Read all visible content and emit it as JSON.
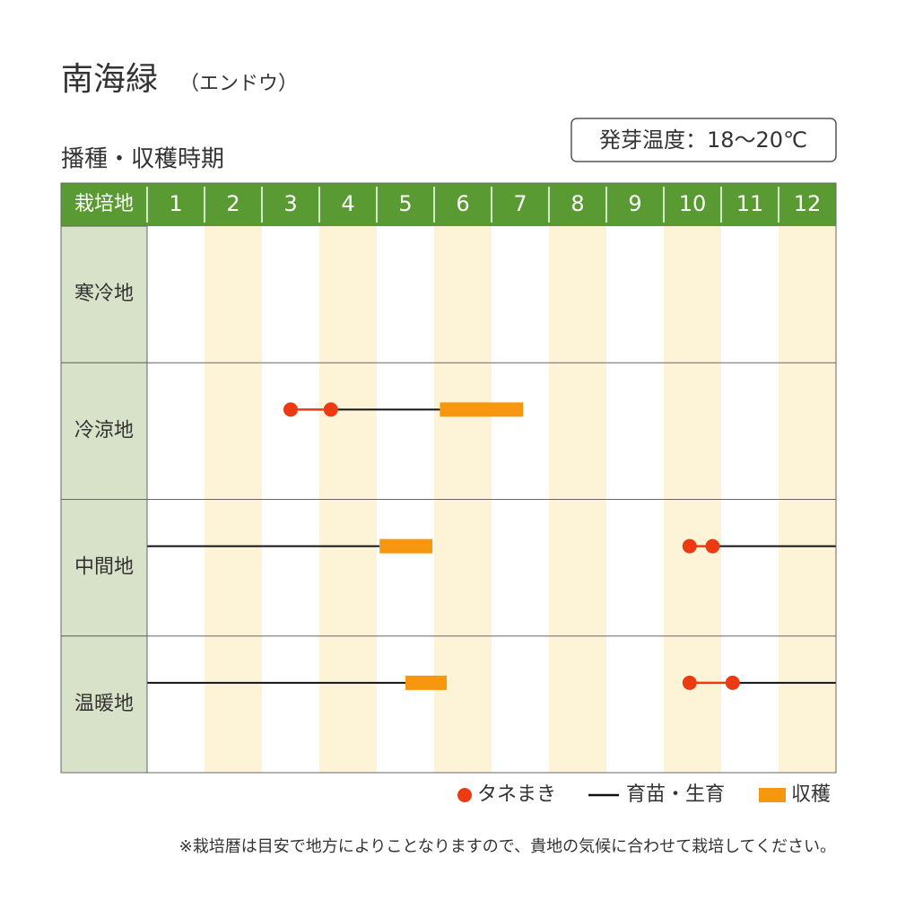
{
  "chart_data": {
    "type": "schedule",
    "title": "南海緑",
    "subtitle": "（エンドウ）",
    "section_title": "播種・収穫時期",
    "germination": "発芽温度：18～20℃",
    "row_header": "栽培地",
    "categories": [
      "1",
      "2",
      "3",
      "4",
      "5",
      "6",
      "7",
      "8",
      "9",
      "10",
      "11",
      "12"
    ],
    "xlim": [
      1,
      13
    ],
    "regions": [
      {
        "name": "寒冷地",
        "sowing": [],
        "growing": [],
        "harvest": []
      },
      {
        "name": "冷涼地",
        "sowing": [
          3.5,
          4.2
        ],
        "growing": [
          [
            4.2,
            6.1
          ]
        ],
        "harvest": [
          [
            6.1,
            7.55
          ]
        ]
      },
      {
        "name": "中間地",
        "sowing": [
          10.45,
          10.85
        ],
        "growing": [
          [
            1,
            5.05
          ],
          [
            10.85,
            13
          ]
        ],
        "harvest": [
          [
            5.05,
            5.97
          ]
        ]
      },
      {
        "name": "温暖地",
        "sowing": [
          10.45,
          11.2
        ],
        "growing": [
          [
            1,
            5.5
          ],
          [
            11.2,
            13
          ]
        ],
        "harvest": [
          [
            5.5,
            6.22
          ]
        ]
      }
    ],
    "legend": {
      "sowing": "タネまき",
      "growing": "育苗・生育",
      "harvest": "収穫"
    },
    "colors": {
      "sowing": "#ee3a12",
      "growing": "#111111",
      "harvest": "#f7960f",
      "header": "#5a9a32",
      "region": "#d8e2c8",
      "shade": "#fdf4d8"
    },
    "note": "※栽培暦は目安で地方によりことなりますので、貴地の気候に合わせて栽培してください。"
  }
}
